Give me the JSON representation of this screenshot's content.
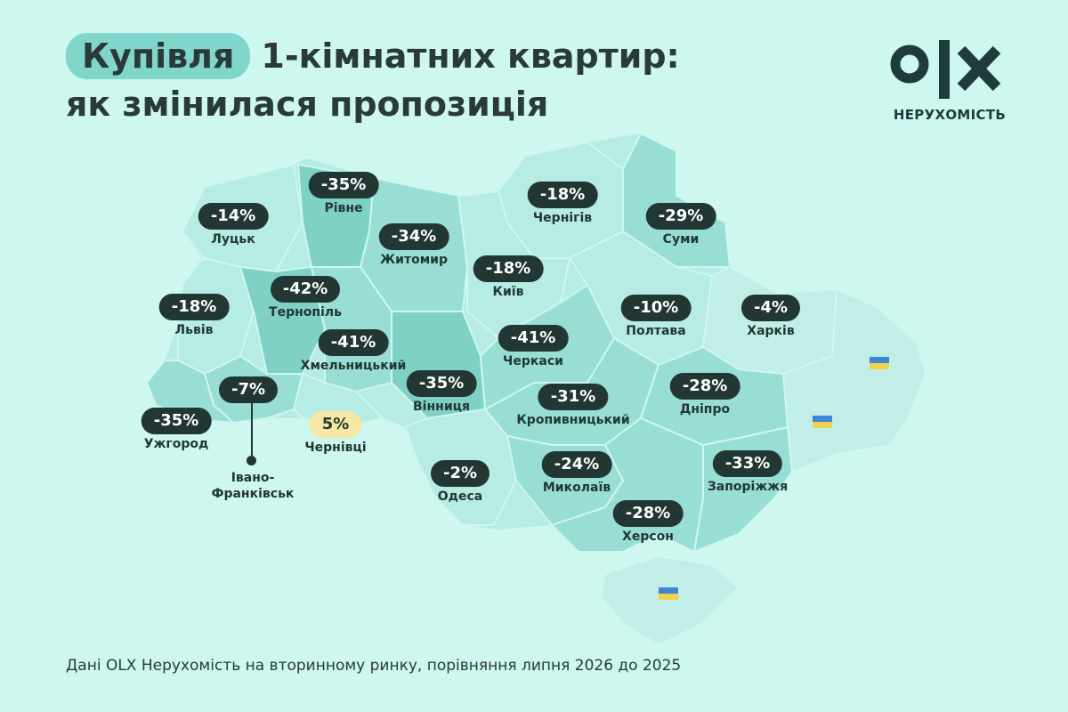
{
  "title": {
    "highlight": "Купівля",
    "line1_rest": "1-кімнатних квартир:",
    "line2": "як змінилася пропозиція"
  },
  "logo": {
    "text": "OLX",
    "subtitle": "НЕРУХОМІСТЬ",
    "color": "#1f3b3b"
  },
  "colors": {
    "background": "#cdf7ef",
    "region_light": "#b6ece4",
    "region_mid": "#98ded4",
    "region_dark": "#7fd1c6",
    "occupied": "#c2eee8",
    "badge": "#223734",
    "badge_positive": "#f7e7a4",
    "flag_blue": "#3f86d4",
    "flag_yellow": "#f1d24c"
  },
  "regions": [
    {
      "city": "Луцьк",
      "change": "-14%"
    },
    {
      "city": "Рівне",
      "change": "-35%"
    },
    {
      "city": "Житомир",
      "change": "-34%"
    },
    {
      "city": "Чернігів",
      "change": "-18%"
    },
    {
      "city": "Суми",
      "change": "-29%"
    },
    {
      "city": "Київ",
      "change": "-18%"
    },
    {
      "city": "Тернопіль",
      "change": "-42%"
    },
    {
      "city": "Львів",
      "change": "-18%"
    },
    {
      "city": "Полтава",
      "change": "-10%"
    },
    {
      "city": "Харків",
      "change": "-4%"
    },
    {
      "city": "Хмельницький",
      "change": "-41%"
    },
    {
      "city": "Черкаси",
      "change": "-41%"
    },
    {
      "city": "Івано-Франківськ",
      "change": "-7%"
    },
    {
      "city": "Вінниця",
      "change": "-35%"
    },
    {
      "city": "Дніпро",
      "change": "-28%"
    },
    {
      "city": "Кропивницький",
      "change": "-31%"
    },
    {
      "city": "Ужгород",
      "change": "-35%"
    },
    {
      "city": "Чернівці",
      "change": "5%"
    },
    {
      "city": "Запоріжжя",
      "change": "-33%"
    },
    {
      "city": "Одеса",
      "change": "-2%"
    },
    {
      "city": "Миколаїв",
      "change": "-24%"
    },
    {
      "city": "Херсон",
      "change": "-28%"
    }
  ],
  "if_city": {
    "line1": "Івано-",
    "line2": "Франківськ"
  },
  "footer": "Дані OLX Нерухомість на вторинному ринку, порівняння липня 2026 до 2025"
}
